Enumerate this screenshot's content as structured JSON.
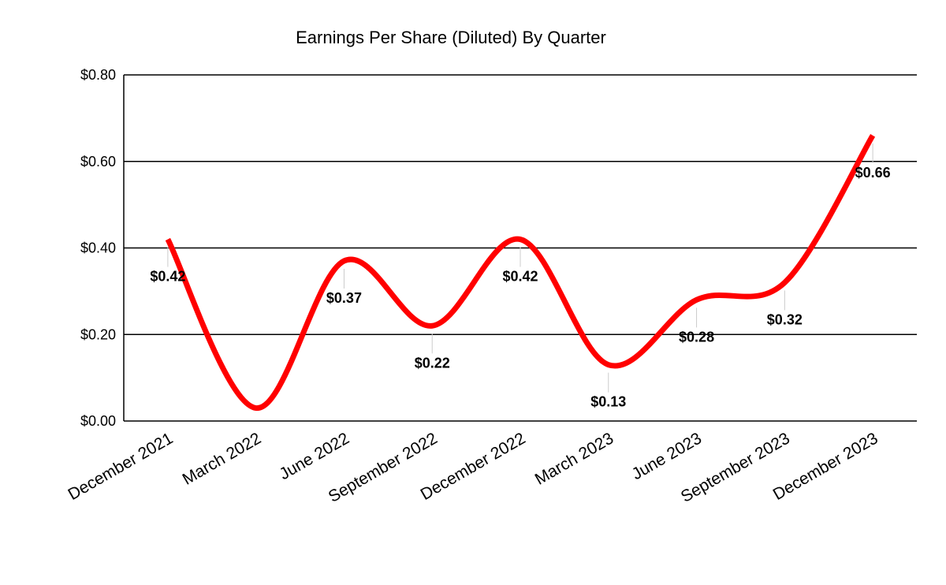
{
  "chart_data": {
    "type": "line",
    "title": "Earnings Per Share (Diluted) By Quarter",
    "xlabel": "",
    "ylabel": "",
    "categories": [
      "December 2021",
      "March 2022",
      "June 2022",
      "September 2022",
      "December 2022",
      "March 2023",
      "June 2023",
      "September 2023",
      "December 2023"
    ],
    "series": [
      {
        "values": [
          0.42,
          0.03,
          0.37,
          0.22,
          0.42,
          0.13,
          0.28,
          0.32,
          0.66
        ],
        "color": "#ff0000",
        "smooth": true
      }
    ],
    "data_labels": [
      "$0.42",
      "",
      "$0.37",
      "$0.22",
      "$0.42",
      "$0.13",
      "$0.28",
      "$0.32",
      "$0.66"
    ],
    "ylim": [
      0,
      0.8
    ],
    "yticks": [
      0,
      0.2,
      0.4,
      0.6,
      0.8
    ],
    "ytick_labels": [
      "$0.00",
      "$0.20",
      "$0.40",
      "$0.60",
      "$0.80"
    ],
    "grid": true,
    "legend": "none"
  }
}
